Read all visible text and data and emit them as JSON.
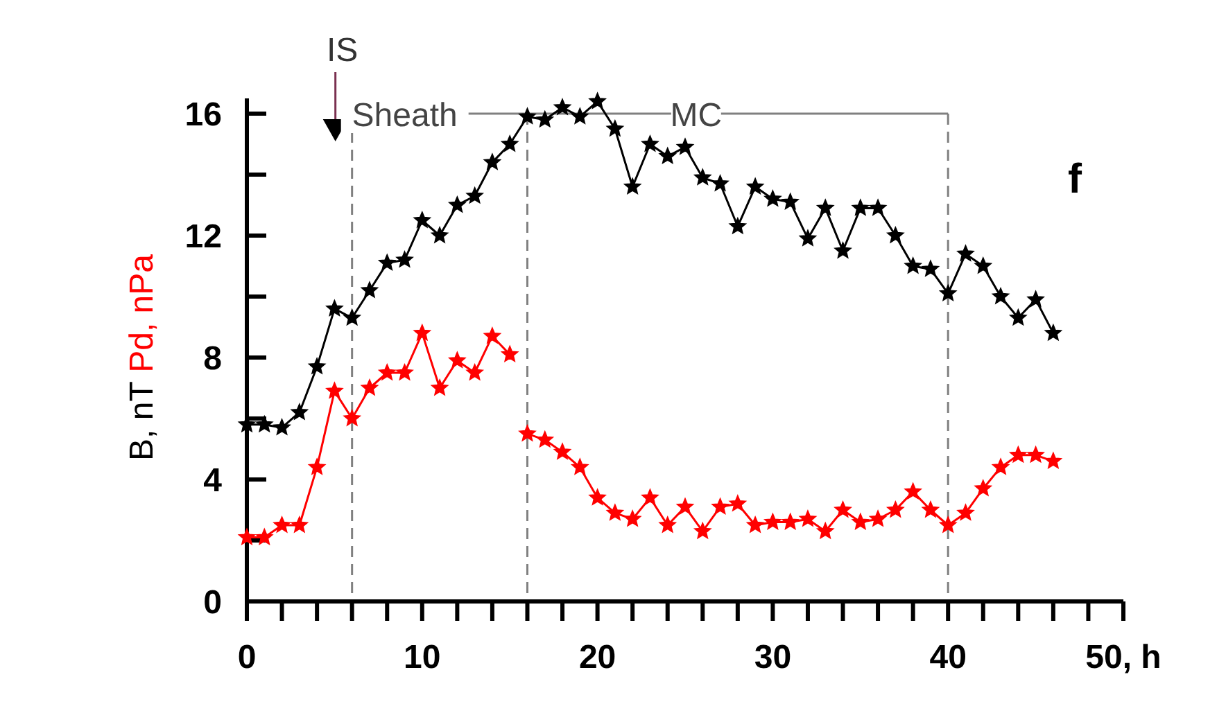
{
  "chart_data": {
    "type": "line",
    "xlim": [
      0,
      50
    ],
    "xticks": [
      0,
      {
        "value": 2,
        "label": null
      },
      {
        "value": 4,
        "label": null
      },
      {
        "value": 6,
        "label": null
      },
      {
        "value": 8,
        "label": null
      },
      10,
      {
        "value": 12,
        "label": null
      },
      {
        "value": 14,
        "label": null
      },
      {
        "value": 16,
        "label": null
      },
      {
        "value": 18,
        "label": null
      },
      20,
      {
        "value": 22,
        "label": null
      },
      {
        "value": 24,
        "label": null
      },
      {
        "value": 26,
        "label": null
      },
      {
        "value": 28,
        "label": null
      },
      30,
      {
        "value": 32,
        "label": null
      },
      {
        "value": 34,
        "label": null
      },
      {
        "value": 36,
        "label": null
      },
      {
        "value": 38,
        "label": null
      },
      40,
      {
        "value": 42,
        "label": null
      },
      {
        "value": 44,
        "label": null
      },
      {
        "value": 46,
        "label": null
      },
      {
        "value": 48,
        "label": null
      },
      {
        "value": 50,
        "label": "50, h"
      }
    ],
    "ylim": [
      0,
      16.5
    ],
    "yticks": [
      0,
      {
        "value": 2,
        "label": null
      },
      4,
      {
        "value": 6,
        "label": null
      },
      8,
      {
        "value": 10,
        "label": null
      },
      12,
      {
        "value": 14,
        "label": null
      },
      16
    ],
    "marker": "star",
    "line_style": "solid",
    "grid": false,
    "series": [
      {
        "name": "B, nT",
        "color": "#000000",
        "x": [
          0,
          1,
          2,
          3,
          4,
          5,
          6,
          7,
          8,
          9,
          10,
          11,
          12,
          13,
          14,
          15,
          16,
          17,
          18,
          19,
          20,
          21,
          22,
          23,
          24,
          25,
          26,
          27,
          28,
          29,
          30,
          31,
          32,
          33,
          34,
          35,
          36,
          37,
          38,
          39,
          40,
          41,
          42,
          43,
          44,
          45,
          46
        ],
        "values": [
          5.8,
          5.8,
          5.7,
          6.2,
          7.7,
          9.6,
          9.3,
          10.2,
          11.1,
          11.2,
          12.5,
          12.0,
          13.0,
          13.3,
          14.4,
          15.0,
          15.9,
          15.8,
          16.2,
          15.9,
          16.4,
          15.5,
          13.6,
          15.0,
          14.6,
          14.9,
          13.9,
          13.7,
          12.3,
          13.6,
          13.2,
          13.1,
          11.9,
          12.9,
          11.5,
          12.9,
          12.9,
          12.0,
          11.0,
          10.9,
          10.1,
          11.4,
          11.0,
          10.0,
          9.3,
          9.9,
          8.8
        ]
      },
      {
        "name": "Pd, nPa",
        "color": "#ff0000",
        "x": [
          0,
          1,
          2,
          3,
          4,
          5,
          6,
          7,
          8,
          9,
          10,
          11,
          12,
          13,
          14,
          15,
          15.5,
          16,
          17,
          18,
          19,
          20,
          21,
          22,
          23,
          24,
          25,
          26,
          27,
          28,
          29,
          30,
          31,
          32,
          33,
          34,
          35,
          36,
          37,
          38,
          39,
          40,
          41,
          42,
          43,
          44,
          45,
          46
        ],
        "values": [
          2.1,
          2.1,
          2.5,
          2.5,
          4.4,
          6.9,
          6.0,
          7.0,
          7.5,
          7.5,
          8.8,
          7.0,
          7.9,
          7.5,
          8.7,
          8.1,
          null,
          5.5,
          5.3,
          4.9,
          4.4,
          3.4,
          2.9,
          2.7,
          3.4,
          2.5,
          3.1,
          2.3,
          3.1,
          3.2,
          2.5,
          2.6,
          2.6,
          2.7,
          2.3,
          3.0,
          2.6,
          2.7,
          3.0,
          3.6,
          3.0,
          2.5,
          2.9,
          3.7,
          4.4,
          4.8,
          4.8,
          4.6
        ]
      }
    ],
    "ref_lines": [
      {
        "axis": "x",
        "value": 6,
        "color": "#808080",
        "line_style": "dashed"
      },
      {
        "axis": "x",
        "value": 16,
        "color": "#808080",
        "line_style": "dashed"
      },
      {
        "axis": "x",
        "value": 40,
        "color": "#808080",
        "line_style": "dashed"
      }
    ],
    "annotations": [
      "IS",
      "Sheath",
      "MC",
      "f"
    ]
  }
}
